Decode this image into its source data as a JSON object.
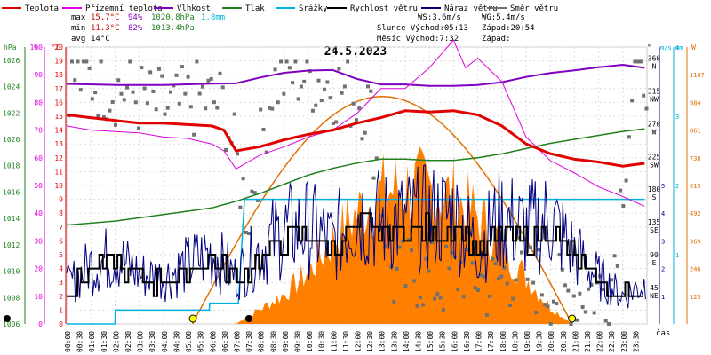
{
  "chart_data": {
    "type": "line",
    "title": "24.5.2023",
    "legend": [
      {
        "name": "Teplota",
        "color": "#e00000"
      },
      {
        "name": "Přízemní teplota",
        "color": "#e000e0"
      },
      {
        "name": "Vlhkost",
        "color": "#8000c0"
      },
      {
        "name": "Tlak",
        "color": "#208020"
      },
      {
        "name": "Srážky",
        "color": "#00b0e0"
      },
      {
        "name": "Rychlost větru",
        "color": "#000000"
      },
      {
        "name": "Náraz větru",
        "color": "#000080"
      },
      {
        "name": "Směr větru",
        "color": "#707070"
      }
    ],
    "stats": {
      "labels": [
        "max",
        "min",
        "avg"
      ],
      "temp": [
        "15.7°C",
        "11.3°C",
        "14°C"
      ],
      "hum": [
        "94%",
        "82%",
        ""
      ],
      "press": [
        "1020.8hPa",
        "1013.4hPa",
        ""
      ],
      "rain": [
        "1.8mm",
        "",
        ""
      ],
      "wind": "WS:3.6m/s",
      "gust": "WG:5.4m/s",
      "sun": "Slunce Východ:05:13",
      "sunset": "Západ:20:54",
      "moon": "Měsíc Východ:7:32",
      "moonset": "Západ:"
    },
    "axis_headers": {
      "hpa": "hPa",
      "pct": "%",
      "degc": "°C",
      "deg": "°",
      "ms": "m/s",
      "mm": "mm",
      "w": "W"
    },
    "x_label": "čas",
    "x_ticks": [
      "00:00",
      "00:30",
      "01:00",
      "01:30",
      "02:00",
      "02:30",
      "03:00",
      "03:30",
      "04:00",
      "04:30",
      "05:00",
      "05:30",
      "06:00",
      "06:30",
      "07:00",
      "07:30",
      "08:00",
      "08:30",
      "09:00",
      "09:30",
      "10:00",
      "10:30",
      "11:00",
      "11:30",
      "12:00",
      "12:30",
      "13:00",
      "13:30",
      "14:00",
      "14:30",
      "15:00",
      "15:30",
      "16:00",
      "16:30",
      "17:00",
      "17:30",
      "18:00",
      "18:30",
      "19:00",
      "19:30",
      "20:00",
      "20:30",
      "21:00",
      "21:30",
      "22:00",
      "22:30",
      "23:00",
      "23:30"
    ],
    "pressure_ticks": [
      "1006",
      "1008",
      "1010",
      "1012",
      "1014",
      "1016",
      "1018",
      "1020",
      "1022",
      "1024",
      "1026"
    ],
    "humidity_ticks": [
      "0",
      "10",
      "20",
      "30",
      "40",
      "50",
      "60",
      "70",
      "80",
      "90",
      "100"
    ],
    "temp_ticks": [
      "0",
      "1",
      "2",
      "3",
      "4",
      "5",
      "6",
      "7",
      "8",
      "9",
      "10",
      "11",
      "12",
      "13",
      "14",
      "15",
      "16",
      "17",
      "18",
      "19",
      "20"
    ],
    "dir_ticks": [
      [
        "360",
        "N"
      ],
      [
        "315",
        "NW"
      ],
      [
        "270",
        "W"
      ],
      [
        "225",
        "SW"
      ],
      [
        "180",
        "S"
      ],
      [
        "135",
        "SE"
      ],
      [
        "90",
        "E"
      ],
      [
        "45",
        "NE"
      ]
    ],
    "ms_ticks": [
      "1",
      "2",
      "3",
      "4",
      "5"
    ],
    "mm_ticks": [
      "1",
      "2",
      "3",
      "4"
    ],
    "w_ticks": [
      "123",
      "246",
      "369",
      "492",
      "615",
      "738",
      "861",
      "984",
      "1107"
    ],
    "ylim": {
      "temp": [
        0,
        20
      ],
      "humidity": [
        0,
        100
      ],
      "pressure": [
        1006,
        1027
      ],
      "wind": [
        0,
        10
      ],
      "rain": [
        0,
        4
      ],
      "solar": [
        0,
        1230
      ],
      "dir": [
        0,
        360
      ]
    },
    "series": {
      "temp_hours": [
        0,
        1,
        2,
        3,
        4,
        5,
        6,
        6.5,
        7,
        8,
        9,
        10,
        11,
        12,
        13,
        14,
        15,
        16,
        17,
        18,
        19,
        20,
        21,
        22,
        23,
        23.9
      ],
      "temp": [
        15.1,
        14.9,
        14.7,
        14.5,
        14.5,
        14.4,
        14.3,
        14.0,
        12.5,
        12.8,
        13.3,
        13.7,
        14.0,
        14.5,
        14.9,
        15.4,
        15.3,
        15.4,
        15.1,
        14.3,
        13.0,
        12.3,
        11.9,
        11.7,
        11.4,
        11.6
      ],
      "ground_hours": [
        0,
        1,
        2,
        3,
        4,
        5,
        6,
        6.5,
        7,
        8,
        9,
        10,
        11,
        12,
        13,
        14,
        15,
        15.5,
        16,
        16.5,
        17,
        18,
        19,
        20,
        21,
        22,
        23,
        23.9
      ],
      "ground_temp": [
        14.3,
        14.0,
        13.9,
        13.8,
        13.5,
        13.4,
        13.0,
        12.5,
        11.2,
        12.2,
        12.8,
        13.5,
        14.0,
        15.2,
        17.0,
        17.0,
        18.5,
        19.5,
        20.5,
        18.5,
        19.2,
        17.5,
        13.5,
        11.8,
        10.9,
        9.9,
        9.2,
        8.5
      ],
      "hum_hours": [
        0,
        2,
        4,
        6,
        7,
        8,
        9,
        10,
        11,
        12,
        13,
        14,
        15,
        16,
        17,
        18,
        19,
        20,
        21,
        22,
        23,
        23.9
      ],
      "humidity": [
        86.7,
        86.3,
        86.3,
        86.8,
        86.9,
        89.0,
        90.7,
        91.5,
        91.7,
        88.5,
        86.5,
        86.5,
        86.0,
        86.0,
        86.3,
        87.3,
        89.2,
        90.6,
        91.6,
        92.7,
        93.6,
        92.5
      ],
      "press_hours": [
        0,
        2,
        4,
        6,
        7,
        8,
        9,
        10,
        11,
        12,
        13,
        14,
        15,
        16,
        17,
        18,
        19,
        20,
        21,
        22,
        23,
        23.9
      ],
      "pressure": [
        1013.5,
        1013.8,
        1014.3,
        1014.8,
        1015.3,
        1015.9,
        1016.6,
        1017.3,
        1017.8,
        1018.2,
        1018.5,
        1018.5,
        1018.4,
        1018.4,
        1018.6,
        1018.9,
        1019.3,
        1019.7,
        1020.0,
        1020.3,
        1020.6,
        1020.8
      ],
      "rain_hours": [
        0,
        2.0,
        2.01,
        5.9,
        5.91,
        7.1,
        7.35,
        23.9
      ],
      "rain": [
        0,
        0,
        0.2,
        0.2,
        0.3,
        0.3,
        1.8,
        1.8
      ],
      "solar_hours": [
        0,
        7.0,
        8,
        9,
        10,
        11,
        12,
        13,
        14,
        15,
        16,
        17,
        18,
        19,
        20,
        20.9,
        24
      ],
      "solar": [
        0,
        0,
        80,
        160,
        280,
        450,
        600,
        700,
        740,
        720,
        680,
        580,
        420,
        250,
        90,
        0,
        0
      ],
      "wind_hours": [
        0,
        1,
        2,
        3,
        4,
        5,
        6,
        7,
        8,
        9,
        10,
        11,
        12,
        13,
        14,
        15,
        16,
        17,
        18,
        19,
        20,
        21,
        22,
        23,
        23.9
      ],
      "wind": [
        1.2,
        1.9,
        2.2,
        1.6,
        1.5,
        1.9,
        2.3,
        1.5,
        2.4,
        3.0,
        3.1,
        2.6,
        3.6,
        3.3,
        3.3,
        3.4,
        3.5,
        2.5,
        3.4,
        3.0,
        3.4,
        2.3,
        1.5,
        0.9,
        1.3
      ],
      "dir_hours": [
        0.5,
        1.5,
        2.5,
        3.5,
        4.5,
        5.5,
        6.5,
        7.5,
        8.5,
        9.5,
        10.5,
        11.5,
        12.5,
        13.5,
        14.5,
        15.5,
        16.5,
        17.5,
        18.5,
        19.5,
        20.5,
        21.5,
        22.5,
        23.5
      ],
      "dir": [
        340,
        330,
        320,
        300,
        295,
        310,
        300,
        150,
        330,
        345,
        335,
        320,
        300,
        60,
        70,
        55,
        80,
        50,
        75,
        60,
        40,
        45,
        50,
        350
      ]
    }
  }
}
